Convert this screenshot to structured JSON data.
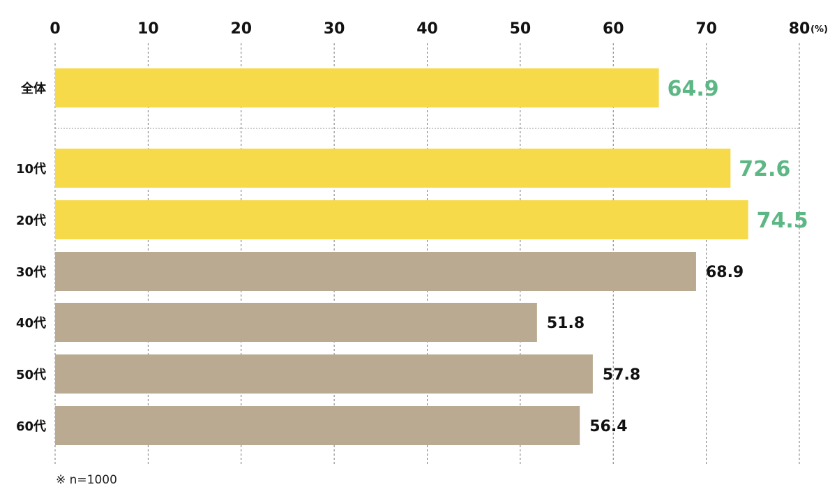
{
  "chart_data": {
    "type": "bar",
    "orientation": "horizontal",
    "categories": [
      "全体",
      "10代",
      "20代",
      "30代",
      "40代",
      "50代",
      "60代"
    ],
    "values": [
      64.9,
      72.6,
      74.5,
      68.9,
      51.8,
      57.8,
      56.4
    ],
    "highlighted": [
      true,
      true,
      true,
      false,
      false,
      false,
      false
    ],
    "value_labels": [
      "64.9",
      "72.6",
      "74.5",
      "68.9",
      "51.8",
      "57.8",
      "56.4"
    ],
    "xlim": [
      0,
      80
    ],
    "xticks": [
      "0",
      "10",
      "20",
      "30",
      "40",
      "50",
      "60",
      "70",
      "80"
    ],
    "unit": "(%)",
    "grid": true,
    "colors": {
      "highlight_bar": "#f7da4a",
      "normal_bar": "#b9aa91",
      "highlight_label": "#5cb785",
      "normal_label": "#111111"
    }
  },
  "footnote": "※ n=1000"
}
